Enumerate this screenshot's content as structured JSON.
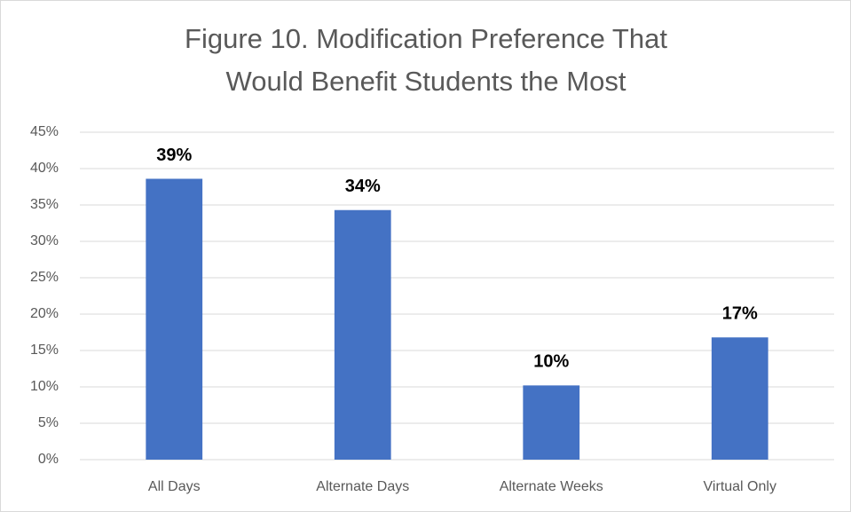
{
  "chart_data": {
    "type": "bar",
    "title": "Figure 10. Modification Preference That Would Benefit Students the Most",
    "categories": [
      "All Days",
      "Alternate Days",
      "Alternate Weeks",
      "Virtual Only"
    ],
    "values": [
      38.6,
      34.3,
      10.2,
      16.8
    ],
    "value_labels": [
      "39%",
      "34%",
      "10%",
      "17%"
    ],
    "color": "#4472c4",
    "ylim": [
      0,
      45
    ],
    "yticks": [
      {
        "value": 0,
        "label": "0%"
      },
      {
        "value": 5,
        "label": "5%"
      },
      {
        "value": 10,
        "label": "10%"
      },
      {
        "value": 15,
        "label": "15%"
      },
      {
        "value": 20,
        "label": "20%"
      },
      {
        "value": 25,
        "label": "25%"
      },
      {
        "value": 30,
        "label": "30%"
      },
      {
        "value": 35,
        "label": "35%"
      },
      {
        "value": 40,
        "label": "40%"
      },
      {
        "value": 45,
        "label": "45%"
      }
    ],
    "grid": true
  }
}
